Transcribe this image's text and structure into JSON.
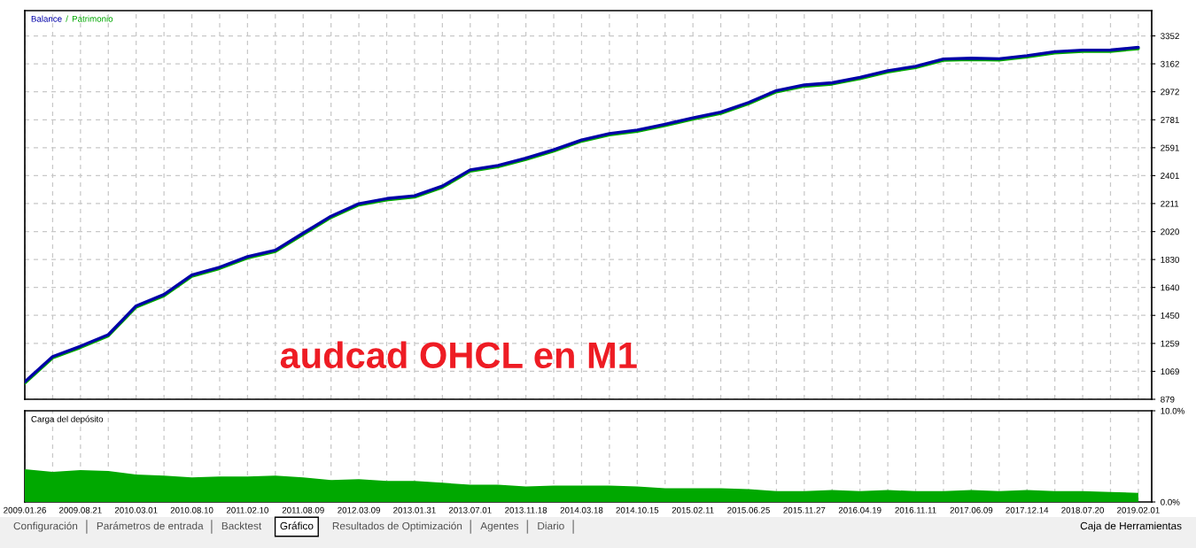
{
  "chart_data": [
    {
      "type": "line",
      "categories": [
        "2009.01.26",
        null,
        "2009.08.21",
        null,
        "2010.03.01",
        null,
        "2010.08.10",
        null,
        "2011.02.10",
        null,
        "2011.08.09",
        null,
        "2012.03.09",
        null,
        "2013.01.31",
        null,
        "2013.07.01",
        null,
        "2013.11.18",
        null,
        "2014.03.18",
        null,
        "2014.10.15",
        null,
        "2015.02.11",
        null,
        "2015.06.25",
        null,
        "2015.11.27",
        null,
        "2016.04.19",
        null,
        "2016.11.11",
        null,
        "2017.06.09",
        null,
        "2017.12.14",
        null,
        "2018.07.20",
        null,
        "2019.02.01"
      ],
      "series": [
        {
          "name": "Balance",
          "color": "#0000a8",
          "values": [
            998,
            1170,
            1240,
            1319,
            1515,
            1592,
            1725,
            1778,
            1850,
            1893,
            2010,
            2125,
            2210,
            2245,
            2264,
            2330,
            2440,
            2470,
            2520,
            2577,
            2644,
            2687,
            2711,
            2751,
            2794,
            2833,
            2899,
            2980,
            3018,
            3033,
            3070,
            3115,
            3145,
            3195,
            3200,
            3196,
            3218,
            3245,
            3255,
            3256,
            3274
          ]
        },
        {
          "name": "Patrimonio",
          "color": "#00a800",
          "values": [
            989,
            1161,
            1231,
            1310,
            1506,
            1583,
            1716,
            1769,
            1841,
            1884,
            2001,
            2116,
            2201,
            2236,
            2255,
            2321,
            2431,
            2461,
            2511,
            2568,
            2635,
            2678,
            2702,
            2742,
            2785,
            2824,
            2890,
            2971,
            3009,
            3024,
            3061,
            3106,
            3136,
            3186,
            3191,
            3187,
            3209,
            3236,
            3246,
            3247,
            3265
          ]
        }
      ],
      "ylim": [
        879,
        3524
      ],
      "yticks": [
        879,
        1069,
        1259,
        1450,
        1640,
        1830,
        2020,
        2211,
        2401,
        2591,
        2781,
        2972,
        3162,
        3352
      ],
      "grid": true,
      "legend": "top left",
      "tick_labels": "y",
      "annotations": [
        "/",
        "audcad OHCL en M1"
      ]
    },
    {
      "type": "area",
      "title": "Carga del depósito",
      "categories": [
        "2009.01.26",
        null,
        "2009.08.21",
        null,
        "2010.03.01",
        null,
        "2010.08.10",
        null,
        "2011.02.10",
        null,
        "2011.08.09",
        null,
        "2012.03.09",
        null,
        "2013.01.31",
        null,
        "2013.07.01",
        null,
        "2013.11.18",
        null,
        "2014.03.18",
        null,
        "2014.10.15",
        null,
        "2015.02.11",
        null,
        "2015.06.25",
        null,
        "2015.11.27",
        null,
        "2016.04.19",
        null,
        "2016.11.11",
        null,
        "2017.06.09",
        null,
        "2017.12.14",
        null,
        "2018.07.20",
        null,
        "2019.02.01"
      ],
      "series": [
        {
          "color": "#00a800",
          "values": [
            3.6,
            3.3,
            3.5,
            3.4,
            3.0,
            2.9,
            2.7,
            2.8,
            2.8,
            2.9,
            2.7,
            2.4,
            2.5,
            2.3,
            2.3,
            2.1,
            1.9,
            1.9,
            1.7,
            1.8,
            1.8,
            1.8,
            1.7,
            1.5,
            1.5,
            1.5,
            1.4,
            1.2,
            1.2,
            1.3,
            1.2,
            1.3,
            1.2,
            1.2,
            1.3,
            1.2,
            1.3,
            1.2,
            1.2,
            1.1,
            1.0
          ]
        }
      ],
      "ylim": [
        0,
        10
      ],
      "yticks": [
        {
          "value": 0,
          "label": "0.0%"
        },
        {
          "value": 10,
          "label": "10.0%"
        }
      ],
      "grid": "x",
      "annotations": [
        "Configuración",
        "Parámetros de entrada",
        "Backtest",
        "Gráfico",
        "Resultados de Optimización",
        "Agentes",
        "Diario",
        "Caja de Herramientas"
      ]
    }
  ]
}
